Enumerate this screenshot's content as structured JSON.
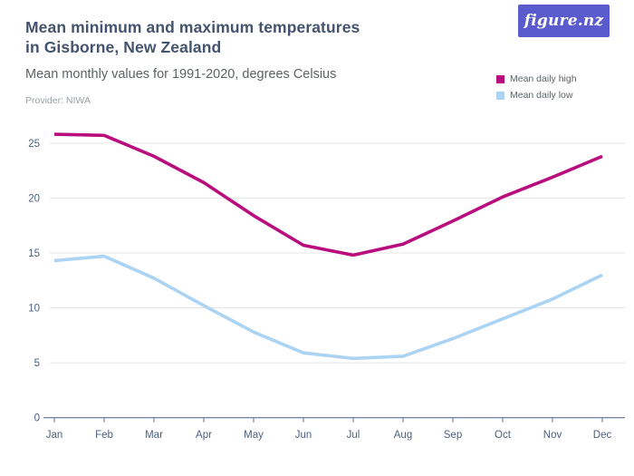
{
  "header": {
    "title_line1": "Mean minimum and maximum temperatures",
    "title_line2": "in Gisborne, New Zealand",
    "subtitle": "Mean monthly values for 1991-2020, degrees Celsius",
    "provider": "Provider: NIWA"
  },
  "logo": {
    "text": "figure.nz",
    "bg_color": "#5a5ccd",
    "text_color": "#ffffff"
  },
  "chart_data": {
    "type": "line",
    "title": "Mean minimum and maximum temperatures in Gisborne, New Zealand",
    "subtitle": "Mean monthly values for 1991-2020, degrees Celsius",
    "categories": [
      "Jan",
      "Feb",
      "Mar",
      "Apr",
      "May",
      "Jun",
      "Jul",
      "Aug",
      "Sep",
      "Oct",
      "Nov",
      "Dec"
    ],
    "series": [
      {
        "name": "Mean daily high",
        "color": "#b90d7e",
        "values": [
          25.8,
          25.7,
          23.8,
          21.4,
          18.4,
          15.7,
          14.8,
          15.8,
          17.9,
          20.1,
          21.9,
          23.8
        ]
      },
      {
        "name": "Mean daily low",
        "color": "#abd3f4",
        "values": [
          14.3,
          14.7,
          12.7,
          10.2,
          7.8,
          5.9,
          5.4,
          5.6,
          7.2,
          9.0,
          10.8,
          13.0
        ]
      }
    ],
    "xlabel": "",
    "ylabel": "degrees Celsius",
    "ylim": [
      0,
      27
    ],
    "yticks": [
      0,
      5,
      10,
      15,
      20,
      25
    ],
    "grid": "horizontal",
    "legend_position": "top-right"
  },
  "colors": {
    "background": "#ffffff",
    "title_text": "#44536e",
    "axis_text": "#4e6180",
    "axis_line": "#5d6f90",
    "gridline": "#e4e4e6"
  }
}
